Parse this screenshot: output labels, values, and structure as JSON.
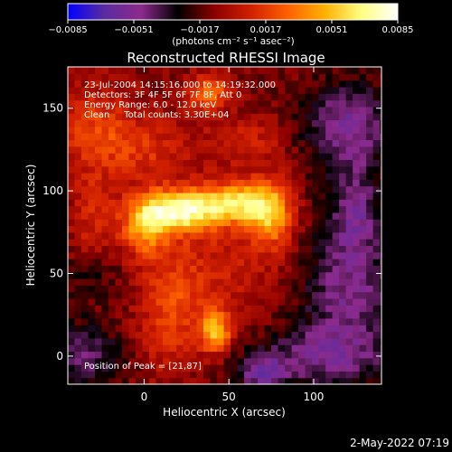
{
  "chart_data": {
    "type": "heatmap",
    "title": "Reconstructed RHESSI Image",
    "xlabel": "Heliocentric X (arcsec)",
    "ylabel": "Heliocentric Y (arcsec)",
    "xlim": [
      -45,
      140
    ],
    "ylim": [
      -17,
      175
    ],
    "x_ticks": [
      0,
      50,
      100
    ],
    "y_ticks": [
      0,
      50,
      100,
      150
    ],
    "colorbar": {
      "range": [
        -0.0085,
        0.0085
      ],
      "tick_values": [
        -0.0085,
        -0.0051,
        -0.0017,
        0.0017,
        0.0051,
        0.0085
      ],
      "tick_labels": [
        "−0.0085",
        "−0.0051",
        "−0.0017",
        "0.0017",
        "0.0051",
        "0.0085"
      ],
      "unit_label": "(photons cm⁻² s⁻¹ asec⁻²)",
      "colors": [
        "#0000ff",
        "#5a2ca0",
        "#8c2a8c",
        "#000000",
        "#8c0000",
        "#d22000",
        "#ff6000",
        "#ffb000",
        "#ffff80",
        "#ffffff"
      ]
    },
    "annotations": [
      "23-Jul-2004 14:15:16.000 to 14:19:32.000",
      "Detectors: 3F 4F 5F 6F 7F 8F, Att 0",
      "Energy Range: 6.0 - 12.0 keV",
      "Clean     Total counts: 3.30E+04"
    ],
    "peak_label": "Position of Peak = [21,87]",
    "peak": [
      21,
      87
    ],
    "sources": [
      {
        "x": 20,
        "y": 88,
        "sx": 16,
        "sy": 9,
        "amp": 0.008
      },
      {
        "x": 55,
        "y": 93,
        "sx": 16,
        "sy": 9,
        "amp": 0.0065
      },
      {
        "x": 75,
        "y": 85,
        "sx": 9,
        "sy": 14,
        "amp": 0.005
      },
      {
        "x": 0,
        "y": 78,
        "sx": 9,
        "sy": 12,
        "amp": 0.0045
      },
      {
        "x": 38,
        "y": 160,
        "sx": 8,
        "sy": 8,
        "amp": 0.0045
      },
      {
        "x": 42,
        "y": 15,
        "sx": 7,
        "sy": 9,
        "amp": 0.0055
      },
      {
        "x": 15,
        "y": 25,
        "sx": 12,
        "sy": 25,
        "amp": 0.0025
      },
      {
        "x": 40,
        "y": 50,
        "sx": 30,
        "sy": 25,
        "amp": 0.0018
      },
      {
        "x": -30,
        "y": 140,
        "sx": 18,
        "sy": 18,
        "amp": 0.0025
      },
      {
        "x": 0,
        "y": 125,
        "sx": 20,
        "sy": 15,
        "amp": 0.0022
      },
      {
        "x": 60,
        "y": 130,
        "sx": 18,
        "sy": 12,
        "amp": 0.0018
      },
      {
        "x": -30,
        "y": 80,
        "sx": 10,
        "sy": 25,
        "amp": 0.002
      },
      {
        "x": 120,
        "y": 140,
        "sx": 18,
        "sy": 18,
        "amp": -0.004
      },
      {
        "x": 120,
        "y": 40,
        "sx": 20,
        "sy": 30,
        "amp": -0.0035
      },
      {
        "x": -35,
        "y": 0,
        "sx": 15,
        "sy": 15,
        "amp": -0.003
      },
      {
        "x": 100,
        "y": 0,
        "sx": 30,
        "sy": 12,
        "amp": -0.003
      },
      {
        "x": -30,
        "y": 50,
        "sx": 12,
        "sy": 12,
        "amp": -0.002
      },
      {
        "x": 125,
        "y": 90,
        "sx": 10,
        "sy": 20,
        "amp": -0.003
      },
      {
        "x": 70,
        "y": -10,
        "sx": 10,
        "sy": 6,
        "amp": -0.004
      }
    ]
  },
  "footer": {
    "timestamp": "2-May-2022 07:19"
  }
}
